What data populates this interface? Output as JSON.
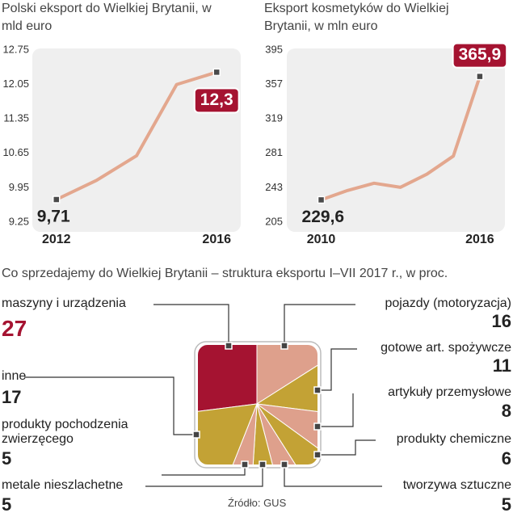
{
  "chart_data": [
    {
      "type": "line",
      "title": "Polski eksport do Wielkiej Brytanii, w mld euro",
      "x": [
        2012,
        2013,
        2014,
        2015,
        2016
      ],
      "values": [
        9.71,
        10.1,
        10.6,
        12.05,
        12.3
      ],
      "value_labels": [
        "9,71",
        null,
        null,
        null,
        "12,3"
      ],
      "color": "#e3a78e",
      "xlim": [
        2011.4,
        2016.6
      ],
      "xticks": [
        2012,
        2016
      ],
      "ylim": [
        9.25,
        12.75
      ],
      "yticks": [
        9.25,
        9.95,
        10.65,
        11.35,
        12.05,
        12.75
      ]
    },
    {
      "type": "line",
      "title": "Eksport kosmetyków do Wielkiej Brytanii, w mln euro",
      "x": [
        2010,
        2011,
        2012,
        2013,
        2014,
        2015,
        2016
      ],
      "values": [
        229.6,
        240,
        248,
        243.5,
        258,
        278,
        365.9
      ],
      "value_labels": [
        "229,6",
        null,
        null,
        null,
        null,
        null,
        "365,9"
      ],
      "color": "#e3a78e",
      "xlim": [
        2008.7,
        2016.95
      ],
      "xticks": [
        2010,
        2016
      ],
      "ylim": [
        205,
        395
      ],
      "yticks": [
        205,
        243,
        281,
        319,
        357,
        395
      ]
    },
    {
      "type": "pie",
      "title": "Co sprzedajemy do Wielkiej Brytanii – struktura eksportu I–VII 2017 r., w proc.",
      "categories": [
        "maszyny i urządzenia",
        "pojazdy (motoryzacja)",
        "gotowe art. spożywcze",
        "artykuły przemysłowe",
        "produkty chemiczne",
        "tworzywa sztuczne",
        "metale nieszlachetne",
        "produkty pochodzenia zwierzęcego",
        "inne"
      ],
      "values": [
        27,
        16,
        11,
        8,
        6,
        5,
        5,
        5,
        17
      ],
      "colors": [
        "#a51331",
        "#dea08c",
        "#c3a235",
        "#dea08c",
        "#c3a235",
        "#dea08c",
        "#c3a235",
        "#dea08c",
        "#c3a235"
      ],
      "source": "Źródło: GUS"
    }
  ]
}
